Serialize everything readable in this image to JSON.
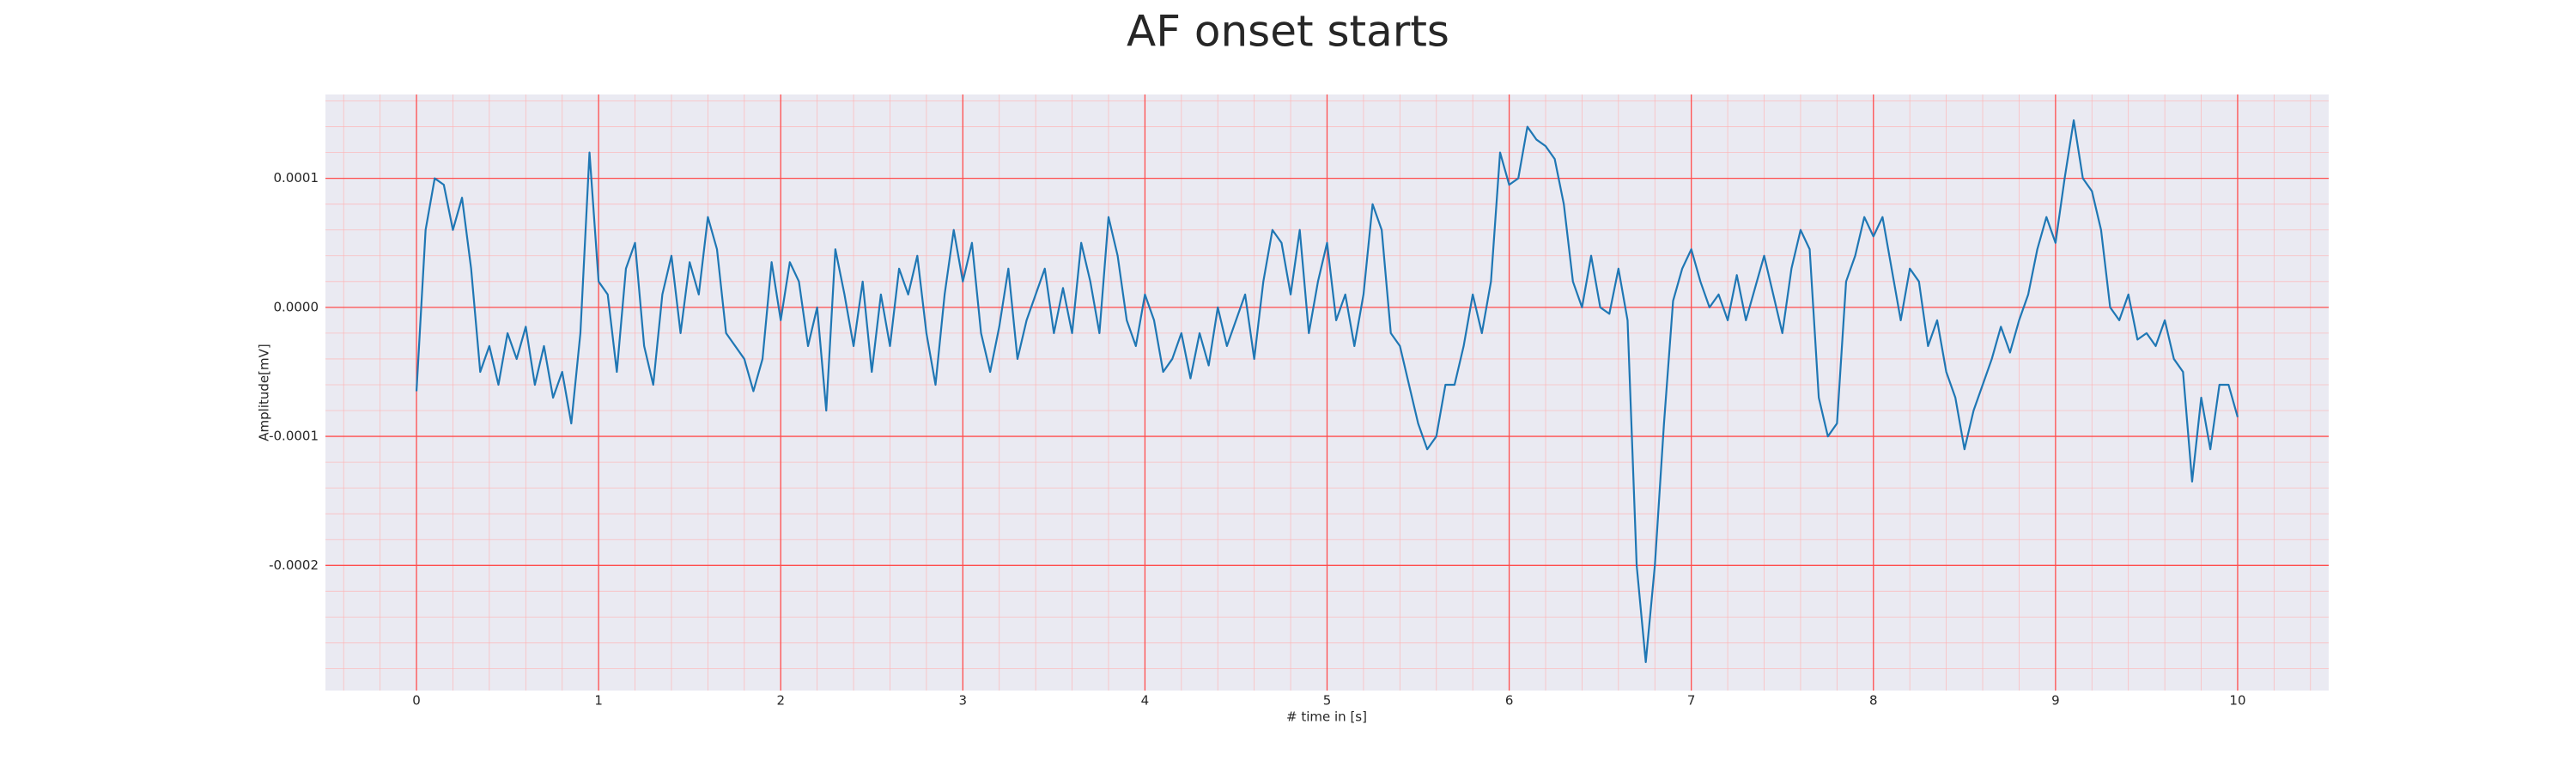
{
  "chart_data": {
    "type": "line",
    "title": "AF onset starts",
    "x_label": "# time in [s]",
    "y_label": "Amplitude[mV]",
    "color": "#1f77b4",
    "grid": true,
    "minor_grid": true,
    "xlim": [
      -0.5,
      10.5
    ],
    "ylim": [
      -0.000297,
      0.000165
    ],
    "xticks": [
      0,
      1,
      2,
      3,
      4,
      5,
      6,
      7,
      8,
      9,
      10
    ],
    "yticks": [
      0.0001,
      {
        "value": 0,
        "label": "0.0000"
      },
      -0.0001,
      -0.0002
    ],
    "x": [
      0,
      0.05,
      0.1,
      0.15,
      0.2,
      0.25,
      0.3,
      0.35,
      0.4,
      0.45,
      0.5,
      0.55,
      0.6,
      0.65,
      0.7,
      0.75,
      0.8,
      0.85,
      0.9,
      0.95,
      1,
      1.05,
      1.1,
      1.15,
      1.2,
      1.25,
      1.3,
      1.35,
      1.4,
      1.45,
      1.5,
      1.55,
      1.6,
      1.65,
      1.7,
      1.75,
      1.8,
      1.85,
      1.9,
      1.95,
      2,
      2.05,
      2.1,
      2.15,
      2.2,
      2.25,
      2.3,
      2.35,
      2.4,
      2.45,
      2.5,
      2.55,
      2.6,
      2.65,
      2.7,
      2.75,
      2.8,
      2.85,
      2.9,
      2.95,
      3,
      3.05,
      3.1,
      3.15,
      3.2,
      3.25,
      3.3,
      3.35,
      3.4,
      3.45,
      3.5,
      3.55,
      3.6,
      3.65,
      3.7,
      3.75,
      3.8,
      3.85,
      3.9,
      3.95,
      4,
      4.05,
      4.1,
      4.15,
      4.2,
      4.25,
      4.3,
      4.35,
      4.4,
      4.45,
      4.5,
      4.55,
      4.6,
      4.65,
      4.7,
      4.75,
      4.8,
      4.85,
      4.9,
      4.95,
      5,
      5.05,
      5.1,
      5.15,
      5.2,
      5.25,
      5.3,
      5.35,
      5.4,
      5.45,
      5.5,
      5.55,
      5.6,
      5.65,
      5.7,
      5.75,
      5.8,
      5.85,
      5.9,
      5.95,
      6,
      6.05,
      6.1,
      6.15,
      6.2,
      6.25,
      6.3,
      6.35,
      6.4,
      6.45,
      6.5,
      6.55,
      6.6,
      6.65,
      6.7,
      6.75,
      6.8,
      6.85,
      6.9,
      6.95,
      7,
      7.05,
      7.1,
      7.15,
      7.2,
      7.25,
      7.3,
      7.35,
      7.4,
      7.45,
      7.5,
      7.55,
      7.6,
      7.65,
      7.7,
      7.75,
      7.8,
      7.85,
      7.9,
      7.95,
      8,
      8.05,
      8.1,
      8.15,
      8.2,
      8.25,
      8.3,
      8.35,
      8.4,
      8.45,
      8.5,
      8.55,
      8.6,
      8.65,
      8.7,
      8.75,
      8.8,
      8.85,
      8.9,
      8.95,
      9,
      9.05,
      9.1,
      9.15,
      9.2,
      9.25,
      9.3,
      9.35,
      9.4,
      9.45,
      9.5,
      9.55,
      9.6,
      9.65,
      9.7,
      9.75,
      9.8,
      9.85,
      9.9,
      9.95,
      10
    ],
    "values": [
      -6.5e-05,
      6e-05,
      0.0001,
      9.5e-05,
      6e-05,
      8.5e-05,
      3e-05,
      -5e-05,
      -3e-05,
      -6e-05,
      -2e-05,
      -4e-05,
      -1.5e-05,
      -6e-05,
      -3e-05,
      -7e-05,
      -5e-05,
      -9e-05,
      -2e-05,
      0.00012,
      2e-05,
      1e-05,
      -5e-05,
      3e-05,
      5e-05,
      -3e-05,
      -6e-05,
      1e-05,
      4e-05,
      -2e-05,
      3.5e-05,
      1e-05,
      7e-05,
      4.5e-05,
      -2e-05,
      -3e-05,
      -4e-05,
      -6.5e-05,
      -4e-05,
      3.5e-05,
      -1e-05,
      3.5e-05,
      2e-05,
      -3e-05,
      0,
      -8e-05,
      4.5e-05,
      1e-05,
      -3e-05,
      2e-05,
      -5e-05,
      1e-05,
      -3e-05,
      3e-05,
      1e-05,
      4e-05,
      -2e-05,
      -6e-05,
      1e-05,
      6e-05,
      2e-05,
      5e-05,
      -2e-05,
      -5e-05,
      -1.5e-05,
      3e-05,
      -4e-05,
      -1e-05,
      1e-05,
      3e-05,
      -2e-05,
      1.5e-05,
      -2e-05,
      5e-05,
      2e-05,
      -2e-05,
      7e-05,
      4e-05,
      -1e-05,
      -3e-05,
      1e-05,
      -1e-05,
      -5e-05,
      -4e-05,
      -2e-05,
      -5.5e-05,
      -2e-05,
      -4.5e-05,
      0,
      -3e-05,
      -1e-05,
      1e-05,
      -4e-05,
      2e-05,
      6e-05,
      5e-05,
      1e-05,
      6e-05,
      -2e-05,
      2e-05,
      5e-05,
      -1e-05,
      1e-05,
      -3e-05,
      1e-05,
      8e-05,
      6e-05,
      -2e-05,
      -3e-05,
      -6e-05,
      -9e-05,
      -0.00011,
      -0.0001,
      -6e-05,
      -6e-05,
      -3e-05,
      1e-05,
      -2e-05,
      2e-05,
      0.00012,
      9.5e-05,
      0.0001,
      0.00014,
      0.00013,
      0.000125,
      0.000115,
      8e-05,
      2e-05,
      0,
      4e-05,
      0,
      -5e-06,
      3e-05,
      -1e-05,
      -0.0002,
      -0.000275,
      -0.0002,
      -9e-05,
      5e-06,
      3e-05,
      4.5e-05,
      2e-05,
      0,
      1e-05,
      -1e-05,
      2.5e-05,
      -1e-05,
      1.5e-05,
      4e-05,
      1e-05,
      -2e-05,
      3e-05,
      6e-05,
      4.5e-05,
      -7e-05,
      -0.0001,
      -9e-05,
      2e-05,
      4e-05,
      7e-05,
      5.5e-05,
      7e-05,
      3e-05,
      -1e-05,
      3e-05,
      2e-05,
      -3e-05,
      -1e-05,
      -5e-05,
      -7e-05,
      -0.00011,
      -8e-05,
      -6e-05,
      -4e-05,
      -1.5e-05,
      -3.5e-05,
      -1e-05,
      1e-05,
      4.5e-05,
      7e-05,
      5e-05,
      0.0001,
      0.000145,
      0.0001,
      9e-05,
      6e-05,
      0,
      -1e-05,
      1e-05,
      -2.5e-05,
      -2e-05,
      -3e-05,
      -1e-05,
      -4e-05,
      -5e-05,
      -0.000135,
      -7e-05,
      -0.00011,
      -6e-05,
      -6e-05,
      -8.5e-05
    ]
  }
}
